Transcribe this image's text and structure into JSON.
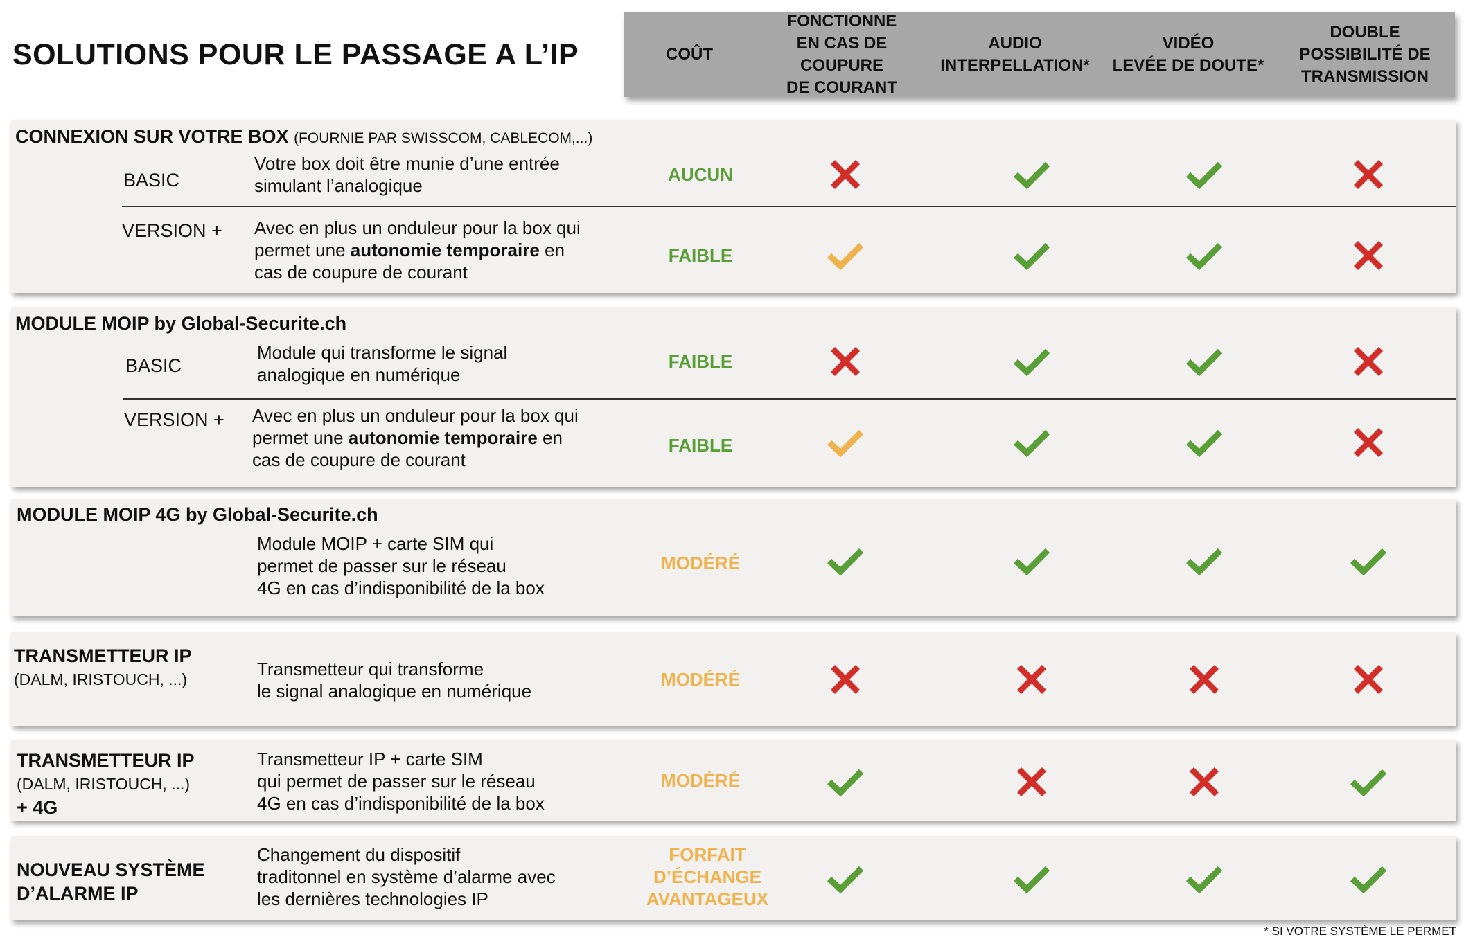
{
  "title": "SOLUTIONS POUR LE PASSAGE A L’IP",
  "header": {
    "columns": [
      "COÛT",
      "FONCTIONNE\nEN CAS DE COUPURE\nDE COURANT",
      "AUDIO\nINTERPELLATION*",
      "VIDÉO\nLEVÉE DE DOUTE*",
      "DOUBLE\nPOSSIBILITÉ DE\nTRANSMISSION"
    ]
  },
  "colors": {
    "check_green": "#5a9e37",
    "check_orange": "#eeb34f",
    "cross_red": "#d12e2a",
    "cost_green": "#5a9e37",
    "cost_orange": "#eeb34f",
    "header_bg": "#a7a7a7",
    "section_bg": "#f2f1f0"
  },
  "sections": [
    {
      "title": "CONNEXION SUR VOTRE BOX",
      "subtitle": "(FOURNIE PAR SWISSCOM, CABLECOM,...)",
      "rows": [
        {
          "variant": "BASIC",
          "desc": "Votre box doit être munie d’une entrée\nsimulant l’analogique",
          "cost": "AUCUN",
          "marks": [
            "cross-red",
            "check-green",
            "check-green",
            "cross-red"
          ]
        },
        {
          "variant": "VERSION +",
          "desc_pre": "Avec en plus un onduleur pour la box qui\npermet une ",
          "desc_bold": "autonomie temporaire",
          "desc_post": " en\ncas de coupure de courant",
          "cost": "FAIBLE",
          "marks": [
            "check-orange",
            "check-green",
            "check-green",
            "cross-red"
          ]
        }
      ]
    },
    {
      "title": "MODULE MOIP by Global-Securite.ch",
      "rows": [
        {
          "variant": "BASIC",
          "desc": "Module qui transforme le signal\nanalogique en numérique",
          "cost": "FAIBLE",
          "marks": [
            "cross-red",
            "check-green",
            "check-green",
            "cross-red"
          ]
        },
        {
          "variant": "VERSION +",
          "desc_pre": "Avec en plus un onduleur pour la box qui\npermet une ",
          "desc_bold": "autonomie temporaire",
          "desc_post": " en\ncas de coupure de courant",
          "cost": "FAIBLE",
          "marks": [
            "check-orange",
            "check-green",
            "check-green",
            "cross-red"
          ]
        }
      ]
    },
    {
      "title": "MODULE MOIP 4G by Global-Securite.ch",
      "rows": [
        {
          "desc": "Module MOIP + carte SIM qui\npermet de passer sur le réseau\n4G en cas d’indisponibilité de la box",
          "cost": "MODÉRÉ",
          "marks": [
            "check-green",
            "check-green",
            "check-green",
            "check-green"
          ]
        }
      ]
    },
    {
      "title": "TRANSMETTEUR IP",
      "subtitle": "(DALM, IRISTOUCH, ...)",
      "rows": [
        {
          "desc": "Transmetteur qui transforme\nle signal analogique en numérique",
          "cost": "MODÉRÉ",
          "marks": [
            "cross-red",
            "cross-red",
            "cross-red",
            "cross-red"
          ]
        }
      ]
    },
    {
      "title": "TRANSMETTEUR IP",
      "subtitle": "(DALM, IRISTOUCH, ...)",
      "suffix": "+ 4G",
      "rows": [
        {
          "desc": "Transmetteur IP + carte SIM\nqui permet de passer sur le réseau\n4G en cas d’indisponibilité de la box",
          "cost": "MODÉRÉ",
          "marks": [
            "check-green",
            "cross-red",
            "cross-red",
            "check-green"
          ]
        }
      ]
    },
    {
      "title": "NOUVEAU SYSTÈME\nD’ALARME IP",
      "rows": [
        {
          "desc": "Changement du dispositif\ntraditonnel en système d’alarme avec\nles dernières technologies IP",
          "cost": "FORFAIT\nD’ÉCHANGE\nAVANTAGEUX",
          "marks": [
            "check-green",
            "check-green",
            "check-green",
            "check-green"
          ]
        }
      ]
    }
  ],
  "footnote": "* SI VOTRE SYSTÈME LE PERMET"
}
